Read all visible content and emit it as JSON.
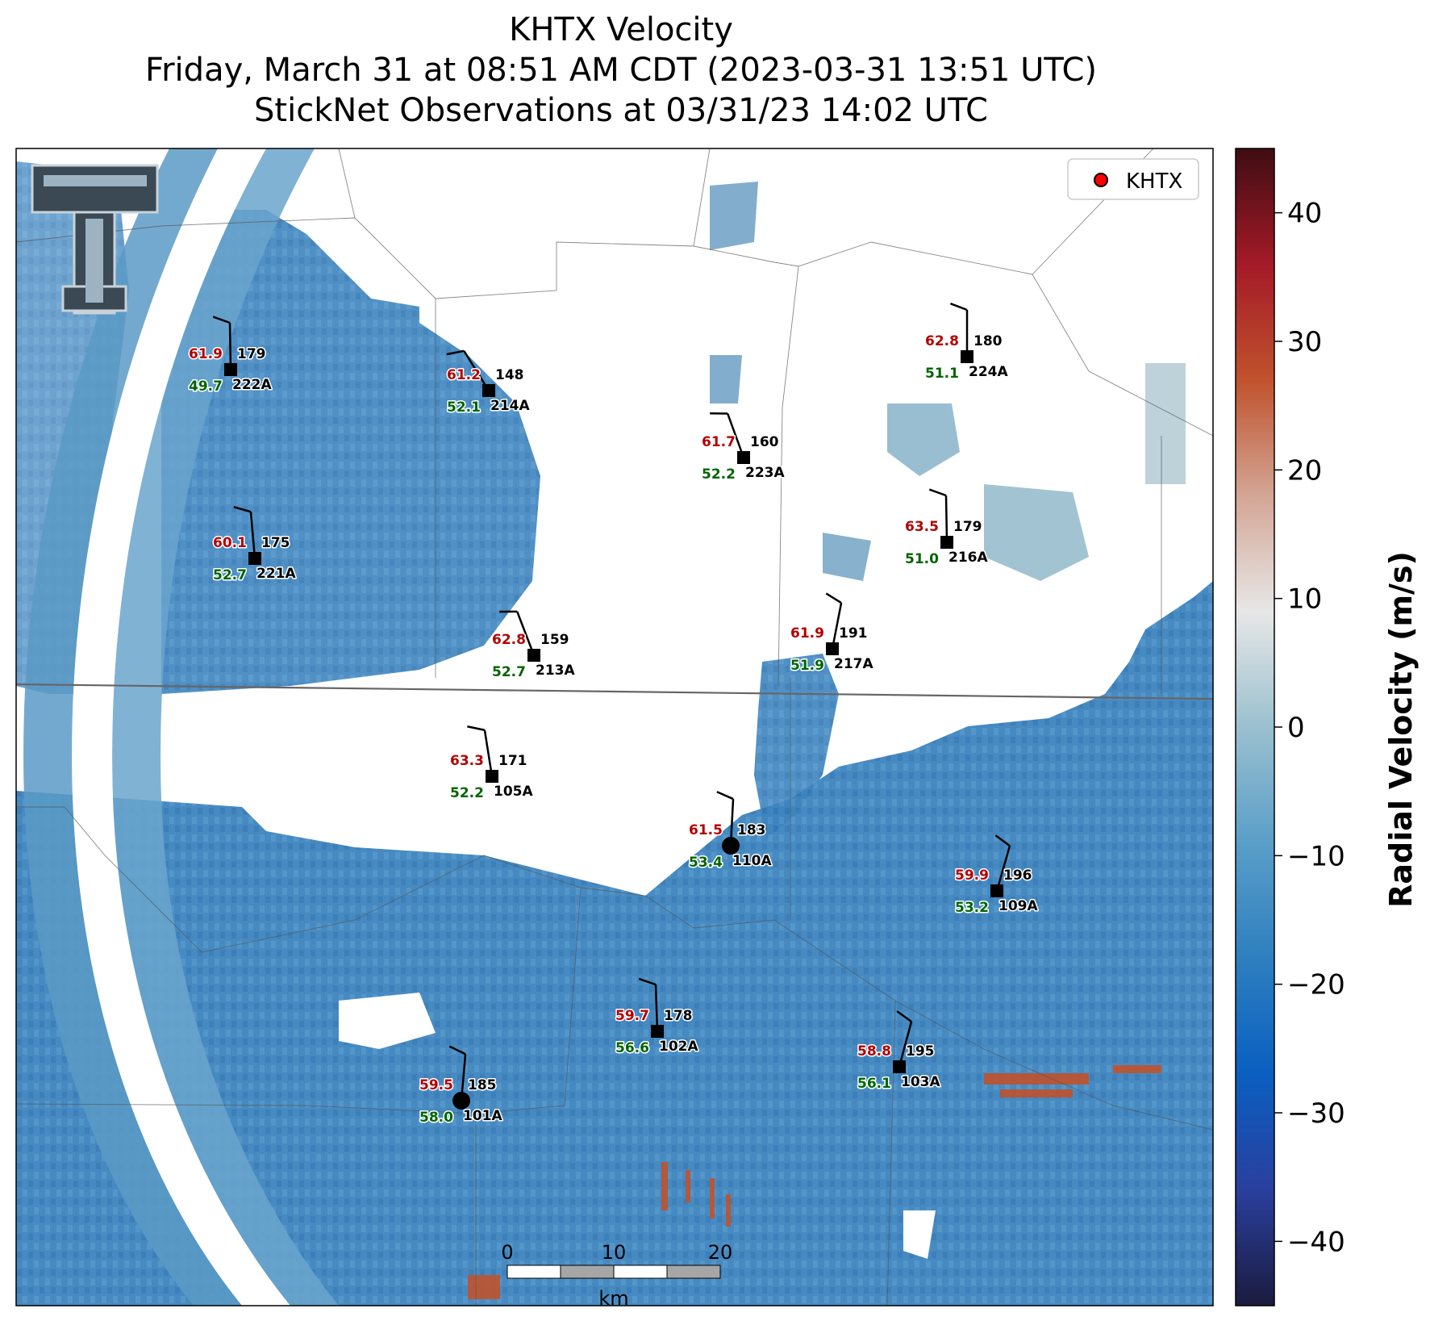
{
  "title": {
    "line1": "KHTX Velocity",
    "line2": "Friday, March 31 at 08:51 AM CDT (2023-03-31 13:51 UTC)",
    "line3": "StickNet Observations at 03/31/23 14:02 UTC"
  },
  "legend": {
    "label": "KHTX",
    "marker_color": "#ff0000",
    "placement": "top-right"
  },
  "colorbar": {
    "label": "Radial Velocity (m/s)",
    "ticks": [
      "40",
      "30",
      "20",
      "10",
      "0",
      "−10",
      "−20",
      "−30",
      "−40"
    ],
    "range": [
      -45,
      45
    ],
    "colors": [
      "#1b1b3e",
      "#2a3f9e",
      "#0a5fc0",
      "#2e7fbf",
      "#5a9ec8",
      "#9bc0cf",
      "#e7e7e7",
      "#d3a595",
      "#c0522d",
      "#a41a28",
      "#3f0d12"
    ]
  },
  "scalebar": {
    "labels": [
      "0",
      "10",
      "20"
    ],
    "unit": "km"
  },
  "stations": [
    {
      "id": "222A",
      "temp": "61.9",
      "dew": "49.7",
      "dir": "179",
      "kind": "square"
    },
    {
      "id": "214A",
      "temp": "61.2",
      "dew": "52.1",
      "dir": "148",
      "kind": "square"
    },
    {
      "id": "223A",
      "temp": "61.7",
      "dew": "52.2",
      "dir": "160",
      "kind": "square"
    },
    {
      "id": "224A",
      "temp": "62.8",
      "dew": "51.1",
      "dir": "180",
      "kind": "square"
    },
    {
      "id": "221A",
      "temp": "60.1",
      "dew": "52.7",
      "dir": "175",
      "kind": "square"
    },
    {
      "id": "216A",
      "temp": "63.5",
      "dew": "51.0",
      "dir": "179",
      "kind": "square"
    },
    {
      "id": "213A",
      "temp": "62.8",
      "dew": "52.7",
      "dir": "159",
      "kind": "square"
    },
    {
      "id": "217A",
      "temp": "61.9",
      "dew": "51.9",
      "dir": "191",
      "kind": "square"
    },
    {
      "id": "105A",
      "temp": "63.3",
      "dew": "52.2",
      "dir": "171",
      "kind": "square"
    },
    {
      "id": "110A",
      "temp": "61.5",
      "dew": "53.4",
      "dir": "183",
      "kind": "circle"
    },
    {
      "id": "109A",
      "temp": "59.9",
      "dew": "53.2",
      "dir": "196",
      "kind": "square"
    },
    {
      "id": "102A",
      "temp": "59.7",
      "dew": "56.6",
      "dir": "178",
      "kind": "square"
    },
    {
      "id": "103A",
      "temp": "58.8",
      "dew": "56.1",
      "dir": "195",
      "kind": "square"
    },
    {
      "id": "101A",
      "temp": "59.5",
      "dew": "58.0",
      "dir": "185",
      "kind": "circle"
    }
  ],
  "colors": {
    "temp": "#b30000",
    "dew": "#006400",
    "station": "#000000"
  }
}
